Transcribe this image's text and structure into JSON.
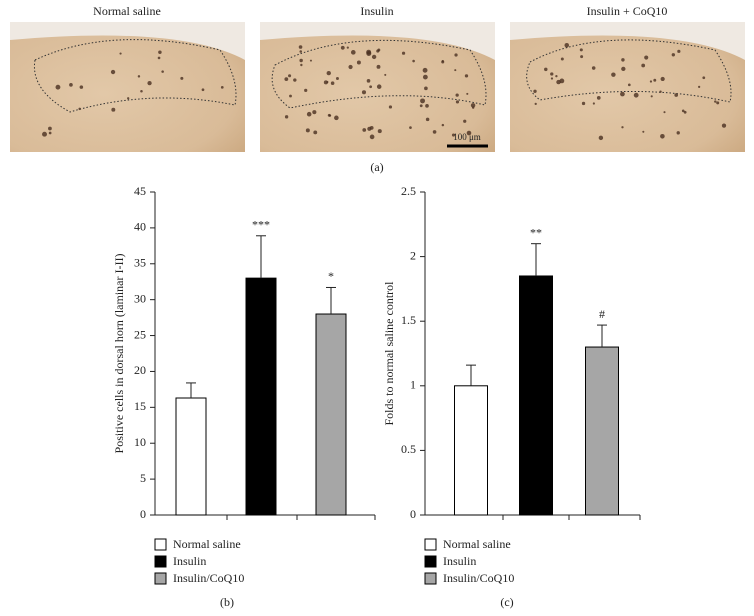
{
  "panel_a": {
    "labels": [
      "Normal saline",
      "Insulin",
      "Insulin + CoQ10"
    ],
    "scale_bar": "100 μm",
    "caption": "(a)"
  },
  "chart_data": [
    {
      "type": "bar",
      "caption": "(b)",
      "y_label": "Positive cells in dorsal horn (laminar I-II)",
      "categories": [
        "Normal saline",
        "Insulin",
        "Insulin/CoQ10"
      ],
      "values": [
        16.3,
        33,
        28
      ],
      "error": [
        2.1,
        5.9,
        3.7
      ],
      "annotations": [
        null,
        "***",
        "*"
      ],
      "colors": [
        "#ffffff",
        "#000000",
        "#a6a6a6"
      ],
      "ylim": [
        0,
        45
      ],
      "yticks": [
        0,
        5,
        10,
        15,
        20,
        25,
        30,
        35,
        40,
        45
      ]
    },
    {
      "type": "bar",
      "caption": "(c)",
      "y_label": "Folds to normal saline control",
      "categories": [
        "Normal saline",
        "Insulin",
        "Insulin/CoQ10"
      ],
      "values": [
        1.0,
        1.85,
        1.3
      ],
      "error": [
        0.16,
        0.25,
        0.17
      ],
      "annotations": [
        null,
        "**",
        "#"
      ],
      "colors": [
        "#ffffff",
        "#000000",
        "#a6a6a6"
      ],
      "ylim": [
        0,
        2.5
      ],
      "yticks": [
        0,
        0.5,
        1,
        1.5,
        2,
        2.5
      ]
    }
  ]
}
